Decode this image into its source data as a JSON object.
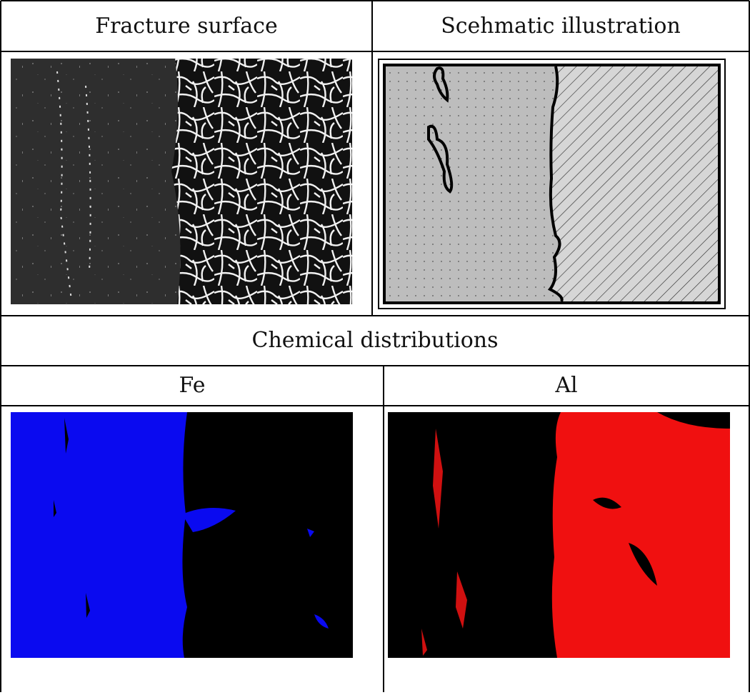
{
  "table": {
    "header": [
      "Fracture surface",
      "Scehmatic illustration"
    ],
    "section_title": "Chemical distributions",
    "elements": [
      "Fe",
      "Al"
    ]
  }
}
